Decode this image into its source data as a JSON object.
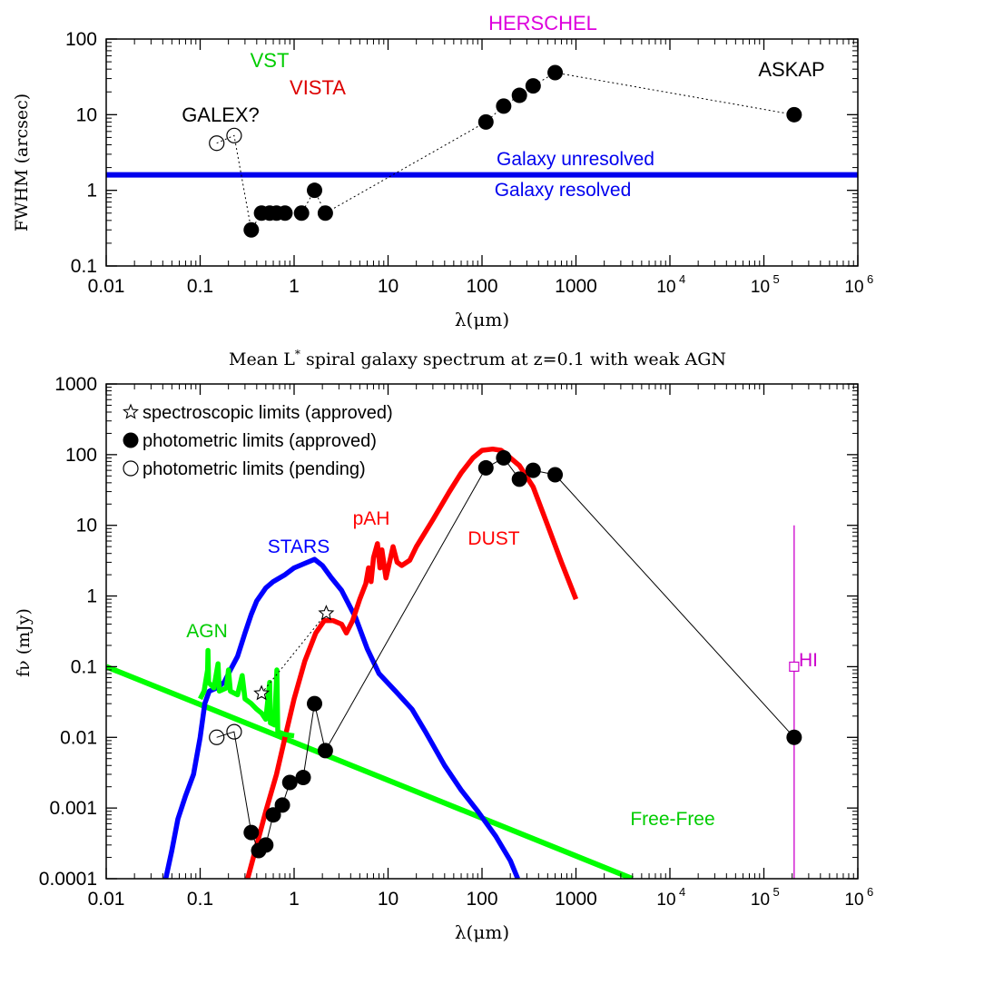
{
  "colors": {
    "axis": "#000000",
    "stars": "#0000ff",
    "dust": "#ff0000",
    "agn": "#00ff00",
    "hi": "#cc00cc",
    "resolution": "#0000ee",
    "vst": "#00cc00",
    "vista": "#dd0000",
    "herschel": "#dd00dd"
  },
  "chart_data": [
    {
      "type": "scatter",
      "title": "",
      "xlabel": "λ(μm)",
      "ylabel": "FWHM (arcsec)",
      "xscale": "log",
      "yscale": "log",
      "xlim": [
        0.01,
        1000000
      ],
      "ylim": [
        0.1,
        100
      ],
      "x_tick_labels": [
        "0.01",
        "0.1",
        "1",
        "10",
        "100",
        "1000",
        "10",
        "10",
        "10"
      ],
      "x_tick_exponents": [
        "4",
        "5",
        "6"
      ],
      "y_tick_labels": [
        "0.1",
        "1",
        "10",
        "100"
      ],
      "series": [
        {
          "symbol": "open-circle",
          "style": "dotted",
          "points": [
            [
              0.15,
              4.2
            ],
            [
              0.23,
              5.3
            ]
          ]
        },
        {
          "symbol": "filled-circle",
          "style": "dotted",
          "points": [
            [
              0.35,
              0.3
            ],
            [
              0.45,
              0.5
            ],
            [
              0.55,
              0.5
            ],
            [
              0.65,
              0.5
            ],
            [
              0.8,
              0.5
            ],
            [
              1.2,
              0.5
            ],
            [
              1.65,
              1.0
            ],
            [
              2.15,
              0.5
            ],
            [
              110,
              8.0
            ],
            [
              170,
              13
            ],
            [
              250,
              18
            ],
            [
              350,
              24
            ],
            [
              600,
              36
            ],
            [
              210000,
              10
            ]
          ]
        }
      ],
      "threshold": {
        "y": 1.6,
        "label_above": "Galaxy unresolved",
        "label_below": "Galaxy resolved"
      },
      "annotations": [
        {
          "text": "HERSCHEL",
          "color": "herschel"
        },
        {
          "text": "VST",
          "color": "vst"
        },
        {
          "text": "VISTA",
          "color": "vista"
        },
        {
          "text": "GALEX?",
          "color": "axis"
        },
        {
          "text": "ASKAP",
          "color": "axis"
        }
      ]
    },
    {
      "type": "line",
      "title": "Mean L* spiral galaxy spectrum at z=0.1 with weak AGN",
      "title_parts": [
        "Mean L",
        "*",
        " spiral galaxy spectrum at z=0.1 with weak AGN"
      ],
      "xlabel": "λ(μm)",
      "ylabel": "fν (mJy)",
      "xscale": "log",
      "yscale": "log",
      "xlim": [
        0.01,
        1000000
      ],
      "ylim": [
        0.0001,
        1000
      ],
      "x_tick_labels": [
        "0.01",
        "0.1",
        "1",
        "10",
        "100",
        "1000",
        "10",
        "10",
        "10"
      ],
      "x_tick_exponents": [
        "4",
        "5",
        "6"
      ],
      "y_tick_labels": [
        "0.0001",
        "0.001",
        "0.01",
        "0.1",
        "1",
        "10",
        "100",
        "1000"
      ],
      "legend": {
        "position": "top-left",
        "entries": [
          {
            "symbol": "star",
            "label": "spectroscopic limits (approved)"
          },
          {
            "symbol": "filled-circle",
            "label": "photometric limits (approved)"
          },
          {
            "symbol": "open-circle",
            "label": "photometric limits (pending)"
          }
        ]
      },
      "series": [
        {
          "name": "STARS",
          "color": "stars",
          "points": [
            [
              0.043,
              0.0001
            ],
            [
              0.05,
              0.00025
            ],
            [
              0.058,
              0.0007
            ],
            [
              0.07,
              0.0015
            ],
            [
              0.085,
              0.003
            ],
            [
              0.1,
              0.01
            ],
            [
              0.112,
              0.03
            ],
            [
              0.125,
              0.045
            ],
            [
              0.15,
              0.05
            ],
            [
              0.18,
              0.06
            ],
            [
              0.21,
              0.09
            ],
            [
              0.25,
              0.14
            ],
            [
              0.3,
              0.3
            ],
            [
              0.35,
              0.55
            ],
            [
              0.4,
              0.85
            ],
            [
              0.5,
              1.3
            ],
            [
              0.6,
              1.6
            ],
            [
              0.8,
              2.0
            ],
            [
              1.0,
              2.5
            ],
            [
              1.3,
              2.9
            ],
            [
              1.65,
              3.3
            ],
            [
              2.0,
              2.7
            ],
            [
              2.5,
              1.8
            ],
            [
              3.2,
              1.2
            ],
            [
              4.5,
              0.5
            ],
            [
              6,
              0.18
            ],
            [
              8,
              0.08
            ],
            [
              12,
              0.045
            ],
            [
              18,
              0.025
            ],
            [
              25,
              0.012
            ],
            [
              40,
              0.004
            ],
            [
              60,
              0.0018
            ],
            [
              90,
              0.0009
            ],
            [
              140,
              0.0004
            ],
            [
              200,
              0.00018
            ],
            [
              240,
              0.0001
            ]
          ]
        },
        {
          "name": "DUST",
          "color": "dust",
          "points": [
            [
              0.32,
              0.0001
            ],
            [
              0.4,
              0.0003
            ],
            [
              0.5,
              0.0009
            ],
            [
              0.65,
              0.003
            ],
            [
              0.8,
              0.01
            ],
            [
              1.0,
              0.035
            ],
            [
              1.3,
              0.12
            ],
            [
              1.7,
              0.3
            ],
            [
              2.1,
              0.45
            ],
            [
              2.6,
              0.45
            ],
            [
              3.2,
              0.4
            ],
            [
              3.6,
              0.3
            ],
            [
              4.2,
              0.45
            ],
            [
              5.0,
              0.9
            ],
            [
              5.8,
              1.5
            ],
            [
              6.2,
              2.5
            ],
            [
              6.6,
              1.6
            ],
            [
              7.0,
              3.5
            ],
            [
              7.7,
              5.5
            ],
            [
              8.2,
              2.5
            ],
            [
              8.6,
              4.5
            ],
            [
              9.5,
              1.8
            ],
            [
              11.3,
              5.0
            ],
            [
              12.5,
              3.0
            ],
            [
              14,
              2.7
            ],
            [
              17,
              3.2
            ],
            [
              20,
              5.0
            ],
            [
              30,
              12
            ],
            [
              45,
              30
            ],
            [
              60,
              55
            ],
            [
              80,
              90
            ],
            [
              100,
              115
            ],
            [
              130,
              120
            ],
            [
              160,
              115
            ],
            [
              200,
              90
            ],
            [
              250,
              70
            ],
            [
              350,
              35
            ],
            [
              500,
              10
            ],
            [
              700,
              3
            ],
            [
              1000,
              0.9
            ]
          ]
        },
        {
          "name": "AGN",
          "color": "agn",
          "points": [
            [
              0.1,
              0.035
            ],
            [
              0.11,
              0.045
            ],
            [
              0.12,
              0.09
            ],
            [
              0.121,
              0.17
            ],
            [
              0.123,
              0.06
            ],
            [
              0.14,
              0.05
            ],
            [
              0.155,
              0.11
            ],
            [
              0.16,
              0.045
            ],
            [
              0.19,
              0.05
            ],
            [
              0.2,
              0.09
            ],
            [
              0.21,
              0.045
            ],
            [
              0.25,
              0.04
            ],
            [
              0.28,
              0.075
            ],
            [
              0.3,
              0.035
            ],
            [
              0.35,
              0.03
            ],
            [
              0.4,
              0.025
            ],
            [
              0.45,
              0.022
            ],
            [
              0.5,
              0.018
            ],
            [
              0.55,
              0.06
            ],
            [
              0.56,
              0.016
            ],
            [
              0.62,
              0.015
            ],
            [
              0.656,
              0.09
            ],
            [
              0.67,
              0.012
            ],
            [
              0.8,
              0.011
            ],
            [
              1.0,
              0.0105
            ]
          ]
        },
        {
          "name": "Free-Free",
          "color": "agn",
          "points": [
            [
              0.01,
              0.1
            ],
            [
              4000,
              0.0001
            ]
          ]
        },
        {
          "name": "photometric limits (pending)",
          "symbol": "open-circle",
          "style": "solid",
          "points": [
            [
              0.15,
              0.01
            ],
            [
              0.23,
              0.012
            ]
          ]
        },
        {
          "name": "photometric limits (approved)",
          "symbol": "filled-circle",
          "style": "solid",
          "points": [
            [
              0.35,
              0.00045
            ],
            [
              0.42,
              0.00025
            ],
            [
              0.5,
              0.0003
            ],
            [
              0.6,
              0.0008
            ],
            [
              0.75,
              0.0011
            ],
            [
              0.9,
              0.0023
            ],
            [
              1.25,
              0.0027
            ],
            [
              1.65,
              0.03
            ],
            [
              2.15,
              0.0065
            ],
            [
              110,
              65
            ],
            [
              170,
              90
            ],
            [
              250,
              45
            ],
            [
              350,
              60
            ],
            [
              600,
              52
            ],
            [
              210000,
              0.01
            ]
          ]
        },
        {
          "name": "spectroscopic limits (approved)",
          "symbol": "star",
          "style": "dotted",
          "points": [
            [
              0.45,
              0.042
            ],
            [
              2.2,
              0.57
            ]
          ]
        },
        {
          "name": "HI",
          "color": "hi",
          "symbol": "open-square",
          "points": [
            [
              210000,
              0.1
            ]
          ],
          "error_range": [
            0.0001,
            10
          ]
        }
      ],
      "annotations": [
        {
          "text": "STARS",
          "color": "stars"
        },
        {
          "text": "DUST",
          "color": "dust"
        },
        {
          "text": "pAH",
          "color": "dust"
        },
        {
          "text": "AGN",
          "color": "agn"
        },
        {
          "text": "Free-Free",
          "color": "agn"
        },
        {
          "text": "HI",
          "color": "hi"
        }
      ]
    }
  ]
}
